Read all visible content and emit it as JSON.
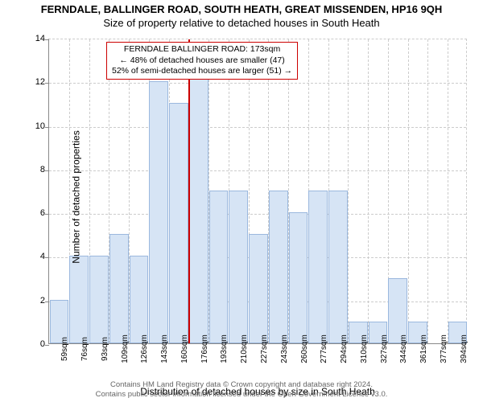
{
  "title_main": "FERNDALE, BALLINGER ROAD, SOUTH HEATH, GREAT MISSENDEN, HP16 9QH",
  "title_sub": "Size of property relative to detached houses in South Heath",
  "chart": {
    "type": "histogram",
    "ylabel": "Number of detached properties",
    "xlabel": "Distribution of detached houses by size in South Heath",
    "ylim": [
      0,
      14
    ],
    "ytick_step": 2,
    "yticks": [
      0,
      2,
      4,
      6,
      8,
      10,
      12,
      14
    ],
    "xticks": [
      "59sqm",
      "76sqm",
      "93sqm",
      "109sqm",
      "126sqm",
      "143sqm",
      "160sqm",
      "176sqm",
      "193sqm",
      "210sqm",
      "227sqm",
      "243sqm",
      "260sqm",
      "277sqm",
      "294sqm",
      "310sqm",
      "327sqm",
      "344sqm",
      "361sqm",
      "377sqm",
      "394sqm"
    ],
    "values": [
      2,
      4,
      4,
      5,
      4,
      12,
      11,
      13,
      7,
      7,
      5,
      7,
      6,
      7,
      7,
      1,
      1,
      3,
      1,
      0,
      1
    ],
    "bar_fill": "#d6e4f5",
    "bar_border": "#9bb8de",
    "marker_index": 7,
    "marker_color": "#cc0000",
    "grid_color": "#cccccc",
    "axis_color": "#888888",
    "background_color": "#ffffff"
  },
  "annotation": {
    "line1": "FERNDALE BALLINGER ROAD: 173sqm",
    "line2": "← 48% of detached houses are smaller (47)",
    "line3": "52% of semi-detached houses are larger (51) →"
  },
  "footer": {
    "line1": "Contains HM Land Registry data © Crown copyright and database right 2024.",
    "line2": "Contains public sector information licensed under the Open Government Licence v3.0."
  }
}
